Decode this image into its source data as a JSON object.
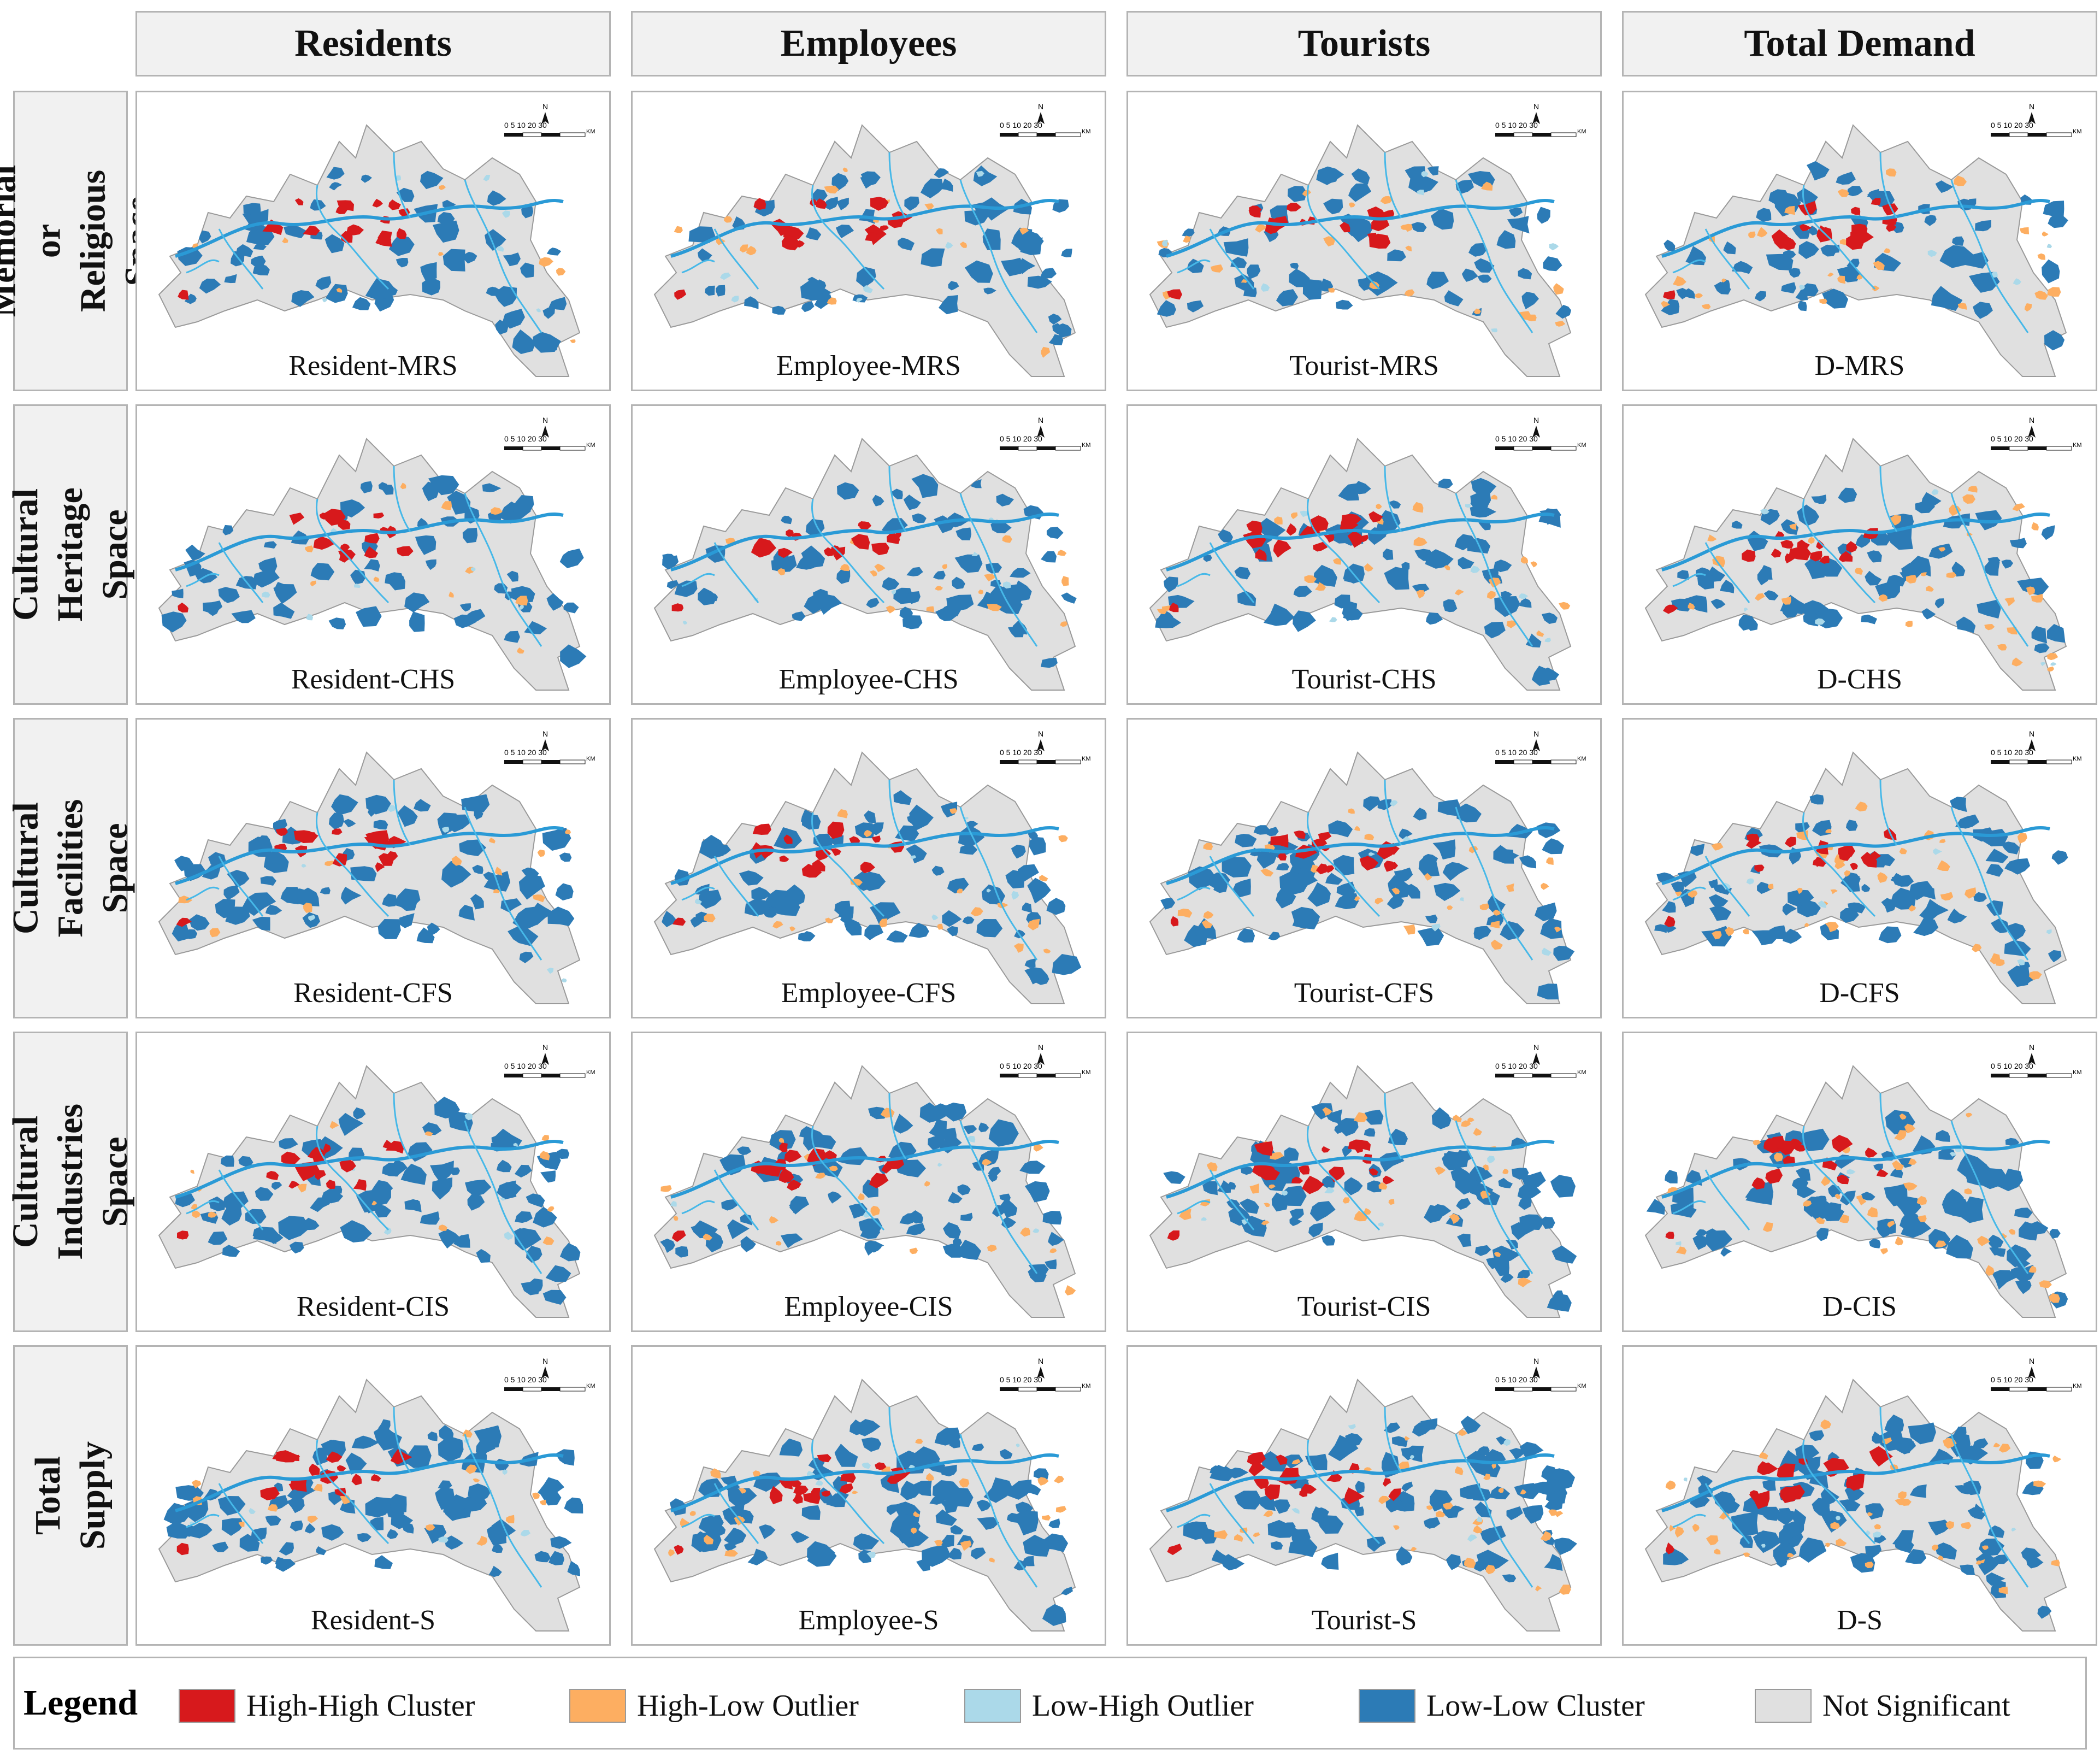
{
  "columns": [
    "Residents",
    "Employees",
    "Tourists",
    "Total Demand"
  ],
  "rows": [
    {
      "label": "Memorial or\nReligious Space",
      "code": "MRS"
    },
    {
      "label": "Cultural\nHeritage Space",
      "code": "CHS"
    },
    {
      "label": "Cultural\nFacilities Space",
      "code": "CFS"
    },
    {
      "label": "Cultural\nIndustries Space",
      "code": "CIS"
    },
    {
      "label": "Total Supply",
      "code": "S"
    }
  ],
  "panels": [
    [
      "Resident-MRS",
      "Employee-MRS",
      "Tourist-MRS",
      "D-MRS"
    ],
    [
      "Resident-CHS",
      "Employee-CHS",
      "Tourist-CHS",
      "D-CHS"
    ],
    [
      "Resident-CFS",
      "Employee-CFS",
      "Tourist-CFS",
      "D-CFS"
    ],
    [
      "Resident-CIS",
      "Employee-CIS",
      "Tourist-CIS",
      "D-CIS"
    ],
    [
      "Resident-S",
      "Employee-S",
      "Tourist-S",
      "D-S"
    ]
  ],
  "scale_bar": {
    "north": "N",
    "ticks": "0  5 10   20      30",
    "unit": "KM"
  },
  "legend": {
    "title": "Legend",
    "items": [
      {
        "label": "High-High Cluster",
        "color": "#d7191c"
      },
      {
        "label": "High-Low Outlier",
        "color": "#fdae61"
      },
      {
        "label": "Low-High Outlier",
        "color": "#abd9e9"
      },
      {
        "label": "Low-Low Cluster",
        "color": "#2c7bb6"
      },
      {
        "label": "Not Significant",
        "color": "#e0e0e0"
      }
    ]
  }
}
